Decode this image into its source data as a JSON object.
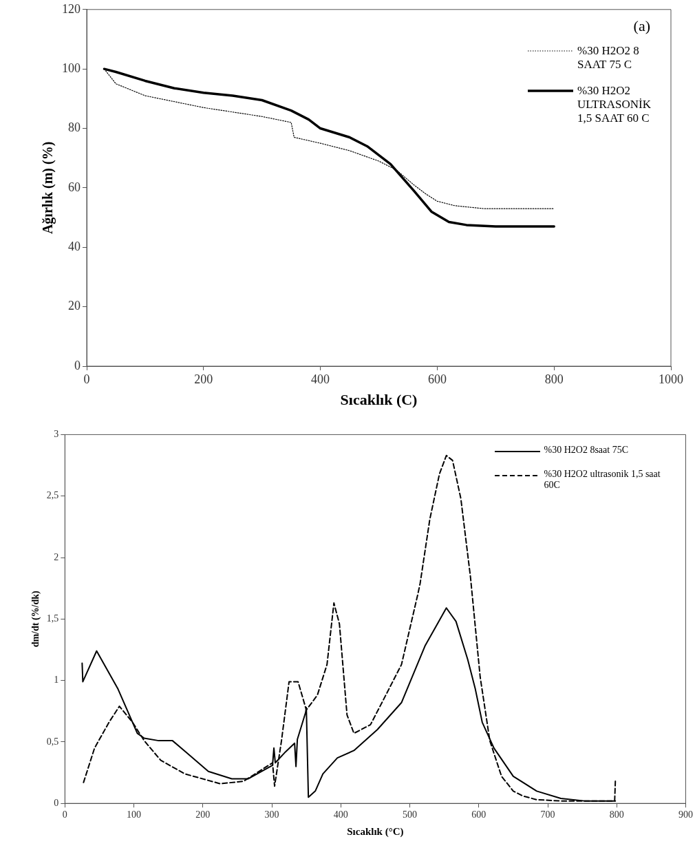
{
  "chart_data": [
    {
      "type": "line",
      "xlabel": "Sıcaklık (C)",
      "ylabel": "Ağırlık (m) (%)",
      "annotations": [
        "(a)"
      ],
      "xlim": [
        0,
        1000
      ],
      "xticks": [
        0,
        200,
        400,
        600,
        800,
        1000
      ],
      "ylim": [
        0,
        120
      ],
      "yticks": [
        0,
        20,
        40,
        60,
        80,
        100,
        120
      ],
      "grid": false,
      "legend": "top right",
      "marker": "none",
      "series": [
        {
          "name": "%30 H2O2 8 SAAT 75 C",
          "color": "#000000",
          "line_style": "dotted",
          "x": [
            30,
            50,
            100,
            150,
            200,
            250,
            300,
            350,
            355,
            400,
            450,
            500,
            530,
            560,
            580,
            600,
            630,
            680,
            800
          ],
          "values": [
            100,
            95,
            91,
            89,
            87,
            85.5,
            84,
            82,
            77,
            75,
            72.5,
            69,
            66,
            61,
            58,
            55.5,
            54,
            53,
            53
          ]
        },
        {
          "name": "%30 H2O2 ULTRASONİK 1,5 SAAT 60 C",
          "color": "#000000",
          "line_style": "solid",
          "x": [
            30,
            50,
            100,
            150,
            200,
            250,
            300,
            350,
            380,
            400,
            450,
            480,
            520,
            560,
            590,
            620,
            650,
            700,
            800
          ],
          "values": [
            100,
            99,
            96,
            93.5,
            92,
            91,
            89.5,
            86,
            83,
            80,
            77,
            74,
            68,
            59,
            52,
            48.5,
            47.5,
            47,
            47
          ]
        }
      ]
    },
    {
      "type": "line",
      "xlabel": "Sıcaklık (°C)",
      "ylabel": "dm/dt (%/dk)",
      "xlim": [
        0,
        900
      ],
      "xticks": [
        0,
        100,
        200,
        300,
        400,
        500,
        600,
        700,
        800,
        900
      ],
      "ylim": [
        0,
        3
      ],
      "yticks": [
        0,
        {
          "value": 0.5,
          "label": "0,5"
        },
        1,
        {
          "value": 1.5,
          "label": "1,5"
        },
        2,
        {
          "value": 2.5,
          "label": "2,5"
        },
        3
      ],
      "grid": false,
      "legend": "top right",
      "marker": "none",
      "series": [
        {
          "name": "%30 H2O2 8saat 75C",
          "color": "#000000",
          "line_style": "solid",
          "x": [
            25,
            26,
            46,
            77,
            105,
            115,
            136,
            156,
            177,
            208,
            242,
            266,
            301,
            303,
            305,
            320,
            333,
            335,
            337,
            349,
            350,
            353,
            363,
            374,
            395,
            419,
            453,
            488,
            522,
            540,
            553,
            567,
            584,
            595,
            605,
            622,
            650,
            684,
            719,
            753,
            798
          ],
          "values": [
            1.14,
            0.99,
            1.24,
            0.93,
            0.57,
            0.53,
            0.51,
            0.51,
            0.41,
            0.26,
            0.2,
            0.2,
            0.31,
            0.45,
            0.33,
            0.42,
            0.49,
            0.3,
            0.52,
            0.74,
            0.78,
            0.05,
            0.1,
            0.24,
            0.37,
            0.43,
            0.6,
            0.82,
            1.28,
            1.46,
            1.59,
            1.48,
            1.17,
            0.93,
            0.66,
            0.45,
            0.22,
            0.1,
            0.04,
            0.02,
            0.02
          ]
        },
        {
          "name": "%30 H2O2 ultrasonik 1,5 saat 60C",
          "color": "#000000",
          "line_style": "dashed",
          "x": [
            27,
            43,
            64,
            79,
            98,
            115,
            139,
            174,
            225,
            259,
            301,
            304,
            314,
            325,
            338,
            350,
            366,
            380,
            390,
            398,
            409,
            419,
            443,
            467,
            488,
            512,
            515,
            529,
            543,
            553,
            562,
            574,
            588,
            602,
            616,
            633,
            650,
            664,
            684,
            719,
            797,
            798
          ],
          "values": [
            0.17,
            0.45,
            0.66,
            0.79,
            0.66,
            0.51,
            0.35,
            0.24,
            0.16,
            0.18,
            0.33,
            0.14,
            0.51,
            0.99,
            0.99,
            0.76,
            0.88,
            1.13,
            1.63,
            1.46,
            0.72,
            0.57,
            0.64,
            0.9,
            1.13,
            1.71,
            1.79,
            2.31,
            2.68,
            2.83,
            2.79,
            2.48,
            1.84,
            1.03,
            0.51,
            0.22,
            0.1,
            0.06,
            0.03,
            0.02,
            0.02,
            0.18
          ]
        }
      ]
    }
  ]
}
